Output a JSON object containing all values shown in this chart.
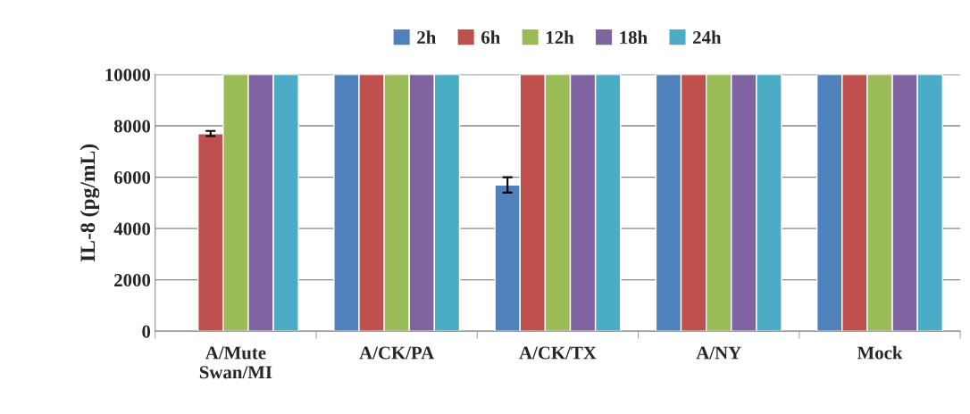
{
  "chart_data": {
    "type": "bar",
    "ylabel": "IL-8 (pg/mL)",
    "categories": [
      "A/Mute\nSwan/MI",
      "A/CK/PA",
      "A/CK/TX",
      "A/NY",
      "Mock"
    ],
    "series": [
      {
        "name": "2h",
        "color": "#4f81bd",
        "values": [
          null,
          10000,
          5700,
          10000,
          10000
        ],
        "errors": [
          null,
          null,
          300,
          null,
          null
        ]
      },
      {
        "name": "6h",
        "color": "#c0504d",
        "values": [
          7700,
          10000,
          10000,
          10000,
          10000
        ],
        "errors": [
          100,
          null,
          null,
          null,
          null
        ]
      },
      {
        "name": "12h",
        "color": "#9bbb59",
        "values": [
          10000,
          10000,
          10000,
          10000,
          10000
        ]
      },
      {
        "name": "18h",
        "color": "#8064a2",
        "values": [
          10000,
          10000,
          10000,
          10000,
          10000
        ]
      },
      {
        "name": "24h",
        "color": "#4bacc6",
        "values": [
          10000,
          10000,
          10000,
          10000,
          10000
        ]
      }
    ],
    "ylim": [
      0,
      10000
    ],
    "yticks": [
      0,
      2000,
      4000,
      6000,
      8000,
      10000
    ],
    "grid": "y",
    "legend": "top"
  }
}
